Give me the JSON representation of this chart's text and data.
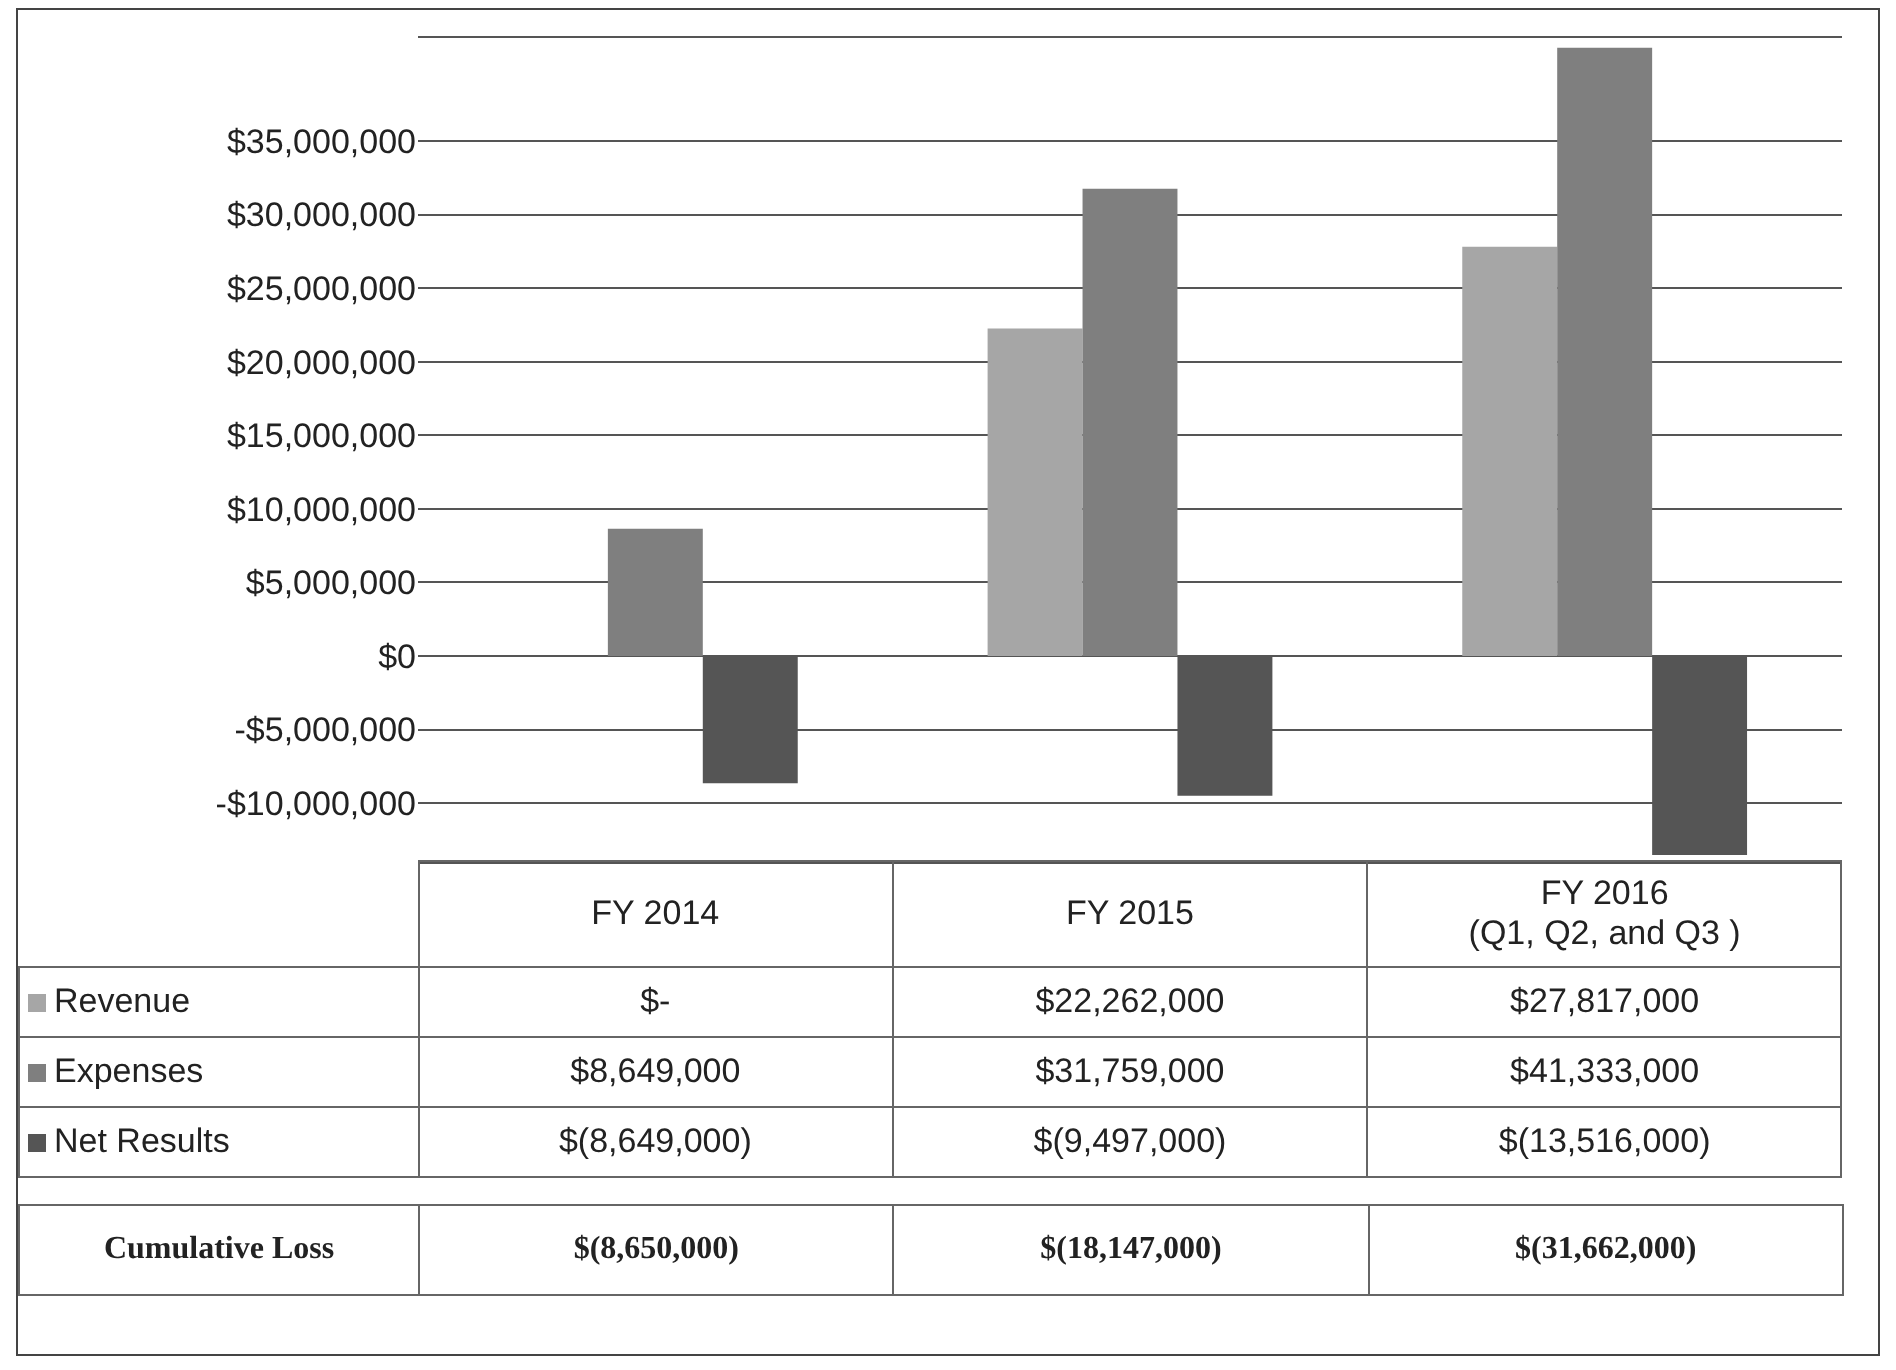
{
  "chart_data": {
    "type": "bar",
    "categories": [
      "FY 2014",
      "FY 2015",
      "FY 2016\n(Q1, Q2, and Q3 )"
    ],
    "series": [
      {
        "name": "Revenue",
        "color": "#a6a6a6",
        "values": [
          0,
          22262000,
          27817000
        ],
        "value_labels": [
          "$-",
          "$22,262,000",
          "$27,817,000"
        ]
      },
      {
        "name": "Expenses",
        "color": "#7f7f7f",
        "values": [
          8649000,
          31759000,
          41333000
        ],
        "value_labels": [
          "$8,649,000",
          "$31,759,000",
          "$41,333,000"
        ]
      },
      {
        "name": "Net Results",
        "color": "#555555",
        "values": [
          -8649000,
          -9497000,
          -13516000
        ],
        "value_labels": [
          "$(8,649,000)",
          "$(9,497,000)",
          "$(13,516,000)"
        ]
      }
    ],
    "ylim": [
      -14000000,
      42000000
    ],
    "yticks": [
      {
        "value": -10000000,
        "label": "-$10,000,000"
      },
      {
        "value": -5000000,
        "label": "-$5,000,000"
      },
      {
        "value": 0,
        "label": "$0"
      },
      {
        "value": 5000000,
        "label": "$5,000,000"
      },
      {
        "value": 10000000,
        "label": "$10,000,000"
      },
      {
        "value": 15000000,
        "label": "$15,000,000"
      },
      {
        "value": 20000000,
        "label": "$20,000,000"
      },
      {
        "value": 25000000,
        "label": "$25,000,000"
      },
      {
        "value": 30000000,
        "label": "$30,000,000"
      },
      {
        "value": 35000000,
        "label": "$35,000,000"
      }
    ],
    "grid": "y",
    "legend": "left",
    "tick_labels": "y",
    "annotations": [
      "Cumulative Loss",
      "$(8,650,000)",
      "$(18,147,000)",
      "$(31,662,000)"
    ]
  }
}
